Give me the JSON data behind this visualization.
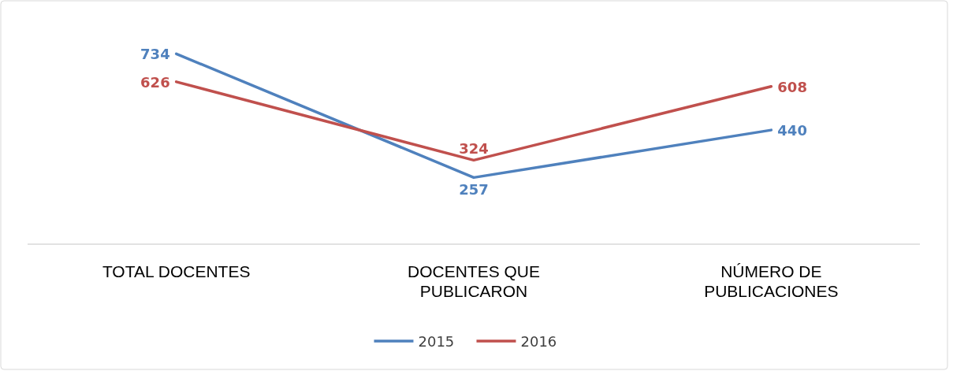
{
  "chart_data": {
    "type": "line",
    "categories": [
      "TOTAL DOCENTES",
      "DOCENTES QUE PUBLICARON",
      "NÚMERO DE PUBLICACIONES"
    ],
    "series": [
      {
        "name": "2015",
        "color": "#4f81bd",
        "values": [
          734,
          257,
          440
        ]
      },
      {
        "name": "2016",
        "color": "#c0504d",
        "values": [
          626,
          324,
          608
        ]
      }
    ],
    "data_labels": true,
    "legend": "bottom",
    "marker": "none",
    "line_style": "solid"
  }
}
